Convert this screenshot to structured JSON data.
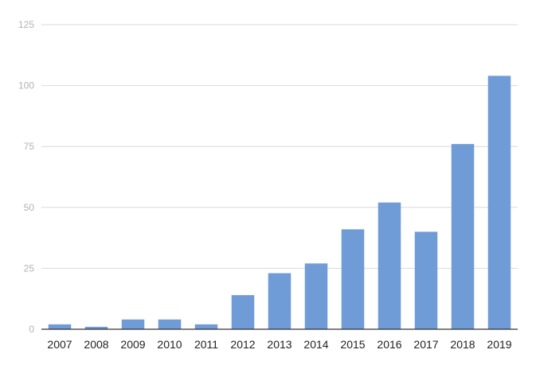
{
  "chart_data": {
    "type": "bar",
    "title": "",
    "xlabel": "",
    "ylabel": "",
    "categories": [
      "2007",
      "2008",
      "2009",
      "2010",
      "2011",
      "2012",
      "2013",
      "2014",
      "2015",
      "2016",
      "2017",
      "2018",
      "2019"
    ],
    "values": [
      2,
      1,
      4,
      4,
      2,
      14,
      23,
      27,
      41,
      52,
      40,
      76,
      104
    ],
    "ylim": [
      0,
      125
    ],
    "yticks": [
      0,
      25,
      50,
      75,
      100,
      125
    ],
    "grid": true,
    "legend": "none",
    "bar_color": "#6f9bd6"
  }
}
